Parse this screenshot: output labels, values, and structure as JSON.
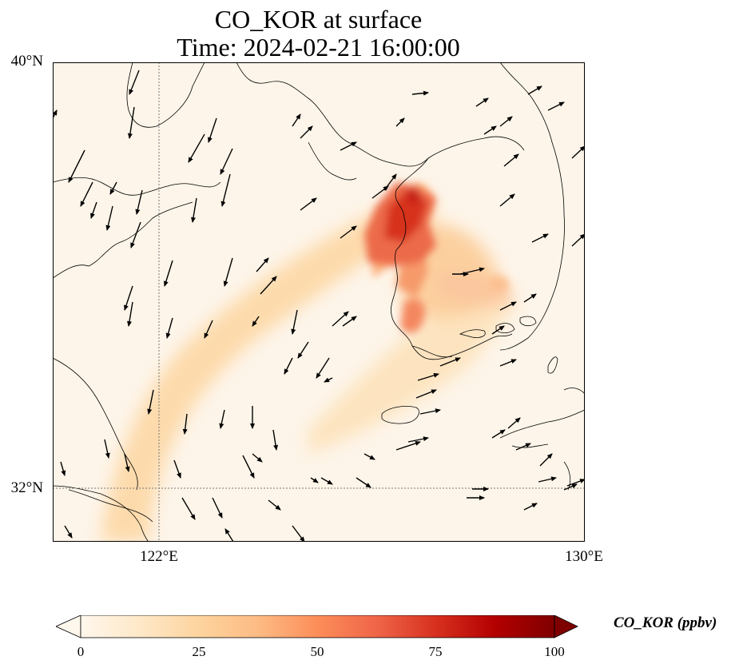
{
  "title": {
    "line1": "CO_KOR at surface",
    "line2": "Time: 2024-02-21 16:00:00"
  },
  "map": {
    "extent": {
      "lon_min": 120.0,
      "lon_max": 130.0,
      "lat_min": 31.0,
      "lat_max": 40.0
    },
    "lat_labels": [
      {
        "text": "40°N",
        "lat": 40
      },
      {
        "text": "32°N",
        "lat": 32
      }
    ],
    "lon_labels": [
      {
        "text": "122°E",
        "lon": 122
      },
      {
        "text": "130°E",
        "lon": 130
      }
    ],
    "gridlines": {
      "lats": [
        32
      ],
      "lons": [
        122
      ]
    },
    "field": "CO_KOR",
    "field_description_plume": "Concentration plume over western Korea and Yellow Sea",
    "background_color": "#fdf5e9"
  },
  "colorbar": {
    "label": "CO_KOR (ppbv)",
    "ticks": [
      "0",
      "25",
      "50",
      "75",
      "100"
    ],
    "tick_values": [
      0,
      25,
      50,
      75,
      100
    ],
    "range": [
      0,
      100
    ],
    "colormap": "OrRd",
    "stops": [
      "#fff7ec",
      "#fee8c8",
      "#fdd49e",
      "#fdbb84",
      "#fc8d59",
      "#ef6548",
      "#d7301f",
      "#b30000",
      "#7f0000"
    ]
  }
}
